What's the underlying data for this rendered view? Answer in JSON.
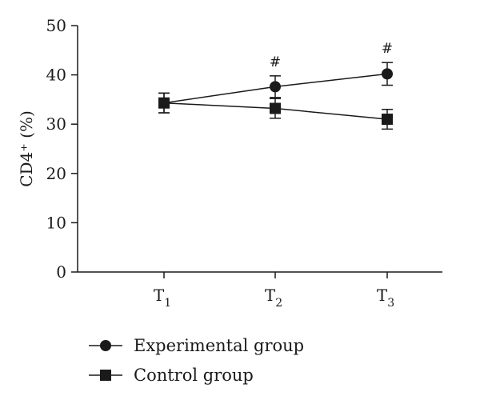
{
  "chart_data": {
    "type": "line",
    "title": "",
    "xlabel": "",
    "ylabel": "CD4⁺ (%)",
    "ylim": [
      0,
      50
    ],
    "yticks": [
      0,
      10,
      20,
      30,
      40,
      50
    ],
    "categories": [
      {
        "base": "T",
        "sub": "1"
      },
      {
        "base": "T",
        "sub": "2"
      },
      {
        "base": "T",
        "sub": "3"
      }
    ],
    "series": [
      {
        "name": "Experimental group",
        "marker": "circle",
        "values": [
          34.3,
          37.6,
          40.2
        ],
        "errors": [
          2.0,
          2.2,
          2.3
        ]
      },
      {
        "name": "Control group",
        "marker": "square",
        "values": [
          34.3,
          33.2,
          31.0
        ],
        "errors": [
          2.0,
          2.0,
          2.0
        ]
      }
    ],
    "annotations": [
      {
        "category_index": 1,
        "text": "#"
      },
      {
        "category_index": 2,
        "text": "#"
      }
    ],
    "grid": false,
    "legend_position": "bottom-left"
  }
}
